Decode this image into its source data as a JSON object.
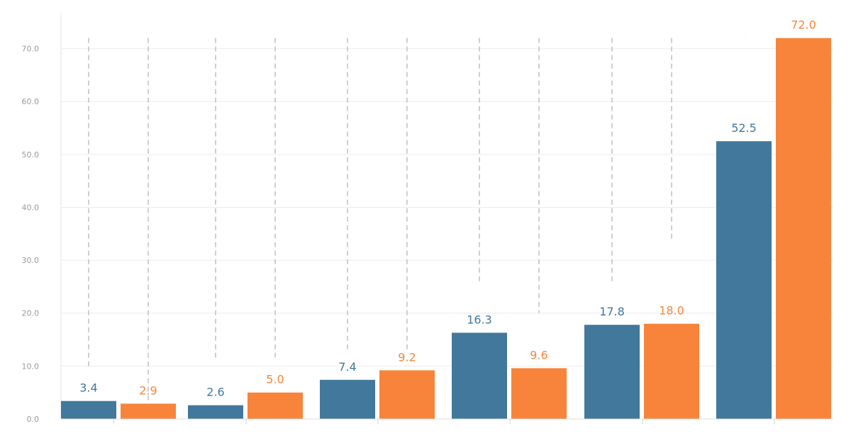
{
  "chart_data": {
    "type": "bar",
    "ylim": [
      0,
      72
    ],
    "y_ticks": [
      "0.0",
      "10.0",
      "20.0",
      "30.0",
      "40.0",
      "50.0",
      "60.0",
      "70.0"
    ],
    "grid": true,
    "colors": {
      "series_a": "#41789b",
      "series_b": "#f7843a"
    },
    "groups": [
      {
        "a": 3.4,
        "b": 2.9,
        "a_label": "3.4",
        "b_label": "2.9",
        "a_err": [
          10.0,
          72.0
        ],
        "b_err": [
          2.3,
          72.0
        ]
      },
      {
        "a": 2.6,
        "b": 5.0,
        "a_label": "2.6",
        "b_label": "5.0",
        "a_err": [
          11.6,
          72.0
        ],
        "b_err": [
          11.6,
          72.0
        ]
      },
      {
        "a": 7.4,
        "b": 9.2,
        "a_label": "7.4",
        "b_label": "9.2",
        "a_err": [
          13.2,
          72.0
        ],
        "b_err": [
          13.2,
          72.0
        ]
      },
      {
        "a": 16.3,
        "b": 9.6,
        "a_label": "16.3",
        "b_label": "9.6",
        "a_err": [
          25.8,
          72.0
        ],
        "b_err": [
          20.0,
          72.0
        ]
      },
      {
        "a": 17.8,
        "b": 18.0,
        "a_label": "17.8",
        "b_label": "18.0",
        "a_err": [
          25.8,
          72.0
        ],
        "b_err": [
          34.0,
          72.0
        ]
      },
      {
        "a": 52.5,
        "b": 72.0,
        "a_label": "52.5",
        "b_label": "72.0",
        "a_err": [
          72.0,
          72.0
        ],
        "b_err": null
      }
    ]
  }
}
